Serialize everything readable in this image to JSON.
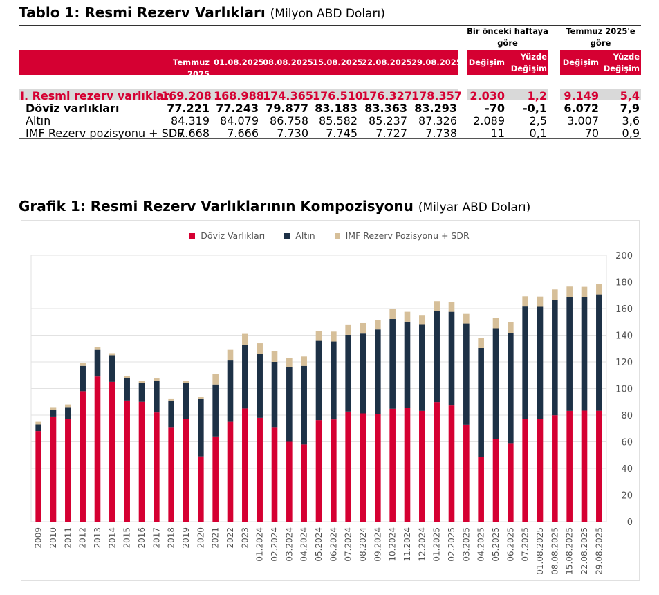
{
  "table": {
    "title": "Tablo 1: Resmi Rezerv Varlıkları",
    "unit": "(Milyon ABD Doları)",
    "group_weekly": "Bir önceki haftaya göre",
    "group_july": "Temmuz 2025'e göre",
    "columns": [
      "Temmuz 2025",
      "01.08.2025",
      "08.08.2025",
      "15.08.2025",
      "22.08.2025",
      "29.08.2025",
      "Değişim",
      "Yüzde Değişim",
      "Değişim",
      "Yüzde Değişim"
    ],
    "rows": [
      {
        "label": "I. Resmi rezerv varlıkları",
        "values": [
          "169.208",
          "168.988",
          "174.365",
          "176.510",
          "176.327",
          "178.357",
          "2.030",
          "1,2",
          "9.149",
          "5,4"
        ]
      },
      {
        "label": "Döviz varlıkları",
        "values": [
          "77.221",
          "77.243",
          "79.877",
          "83.183",
          "83.363",
          "83.293",
          "-70",
          "-0,1",
          "6.072",
          "7,9"
        ]
      },
      {
        "label": "Altın",
        "values": [
          "84.319",
          "84.079",
          "86.758",
          "85.582",
          "85.237",
          "87.326",
          "2.089",
          "2,5",
          "3.007",
          "3,6"
        ]
      },
      {
        "label": "IMF Rezerv pozisyonu + SDR",
        "values": [
          "7.668",
          "7.666",
          "7.730",
          "7.745",
          "7.727",
          "7.738",
          "11",
          "0,1",
          "70",
          "0,9"
        ]
      }
    ],
    "colors": {
      "header": "#d50032",
      "total_row_bg": "#d9d9d9",
      "total_row_text": "#d50032"
    }
  },
  "chart_data": {
    "type": "bar",
    "stacked": true,
    "title": "Grafik 1: Resmi Rezerv Varlıklarının Kompozisyonu",
    "unit": "(Milyar ABD Doları)",
    "legend_position": "top",
    "grid": true,
    "ylim": [
      0,
      200
    ],
    "yticks": [
      0,
      20,
      40,
      60,
      80,
      100,
      120,
      140,
      160,
      180,
      200
    ],
    "yaxis_side": "right",
    "categories": [
      "2009",
      "2010",
      "2011",
      "2012",
      "2013",
      "2014",
      "2015",
      "2016",
      "2017",
      "2018",
      "2019",
      "2020",
      "2021",
      "2022",
      "2023",
      "01.2024",
      "02.2024",
      "03.2024",
      "04.2024",
      "05.2024",
      "06.2024",
      "07.2024",
      "08.2024",
      "09.2024",
      "10.2024",
      "11.2024",
      "12.2024",
      "01.2025",
      "02.2025",
      "03.2025",
      "04.2025",
      "05.2025",
      "06.2025",
      "07.2025",
      "01.08.2025",
      "08.08.2025",
      "15.08.2025",
      "22.08.2025",
      "29.08.2025"
    ],
    "series": [
      {
        "name": "Döviz Varlıkları",
        "color": "#d50032",
        "values": [
          68,
          79,
          77,
          98,
          109,
          105,
          91,
          90,
          82,
          71,
          77,
          49,
          64,
          75,
          85,
          78,
          71,
          60,
          58,
          76.3,
          76.8,
          82.7,
          81.3,
          80.6,
          84.8,
          85.5,
          83.2,
          89.8,
          87.2,
          72.8,
          48.4,
          61.9,
          58.5,
          77.2,
          77.2,
          79.9,
          83.2,
          83.4,
          83.3
        ]
      },
      {
        "name": "Altın",
        "color": "#1d3146",
        "values": [
          5,
          5,
          9,
          19,
          20,
          20,
          17,
          14,
          24,
          20,
          27,
          43,
          39,
          46,
          48,
          48,
          49,
          56,
          59,
          59.5,
          58.5,
          57.6,
          59.9,
          63.7,
          67.4,
          64.7,
          64.6,
          68.3,
          70.4,
          76,
          82,
          83.3,
          83.2,
          84.3,
          84.1,
          86.8,
          85.6,
          85.2,
          87.3
        ]
      },
      {
        "name": "IMF Rezerv Pozisyonu + SDR",
        "color": "#d6bf99",
        "values": [
          2,
          2,
          2,
          2,
          2,
          1.5,
          1.5,
          1.5,
          1.5,
          1.5,
          1.5,
          1.5,
          8,
          8,
          8,
          8,
          8,
          7,
          7,
          7.5,
          7.4,
          7.3,
          7.9,
          7.3,
          7.5,
          7.4,
          6.9,
          7.5,
          7.4,
          7.2,
          7.3,
          7.6,
          8,
          7.7,
          7.7,
          7.7,
          7.7,
          7.7,
          7.7
        ]
      }
    ]
  }
}
